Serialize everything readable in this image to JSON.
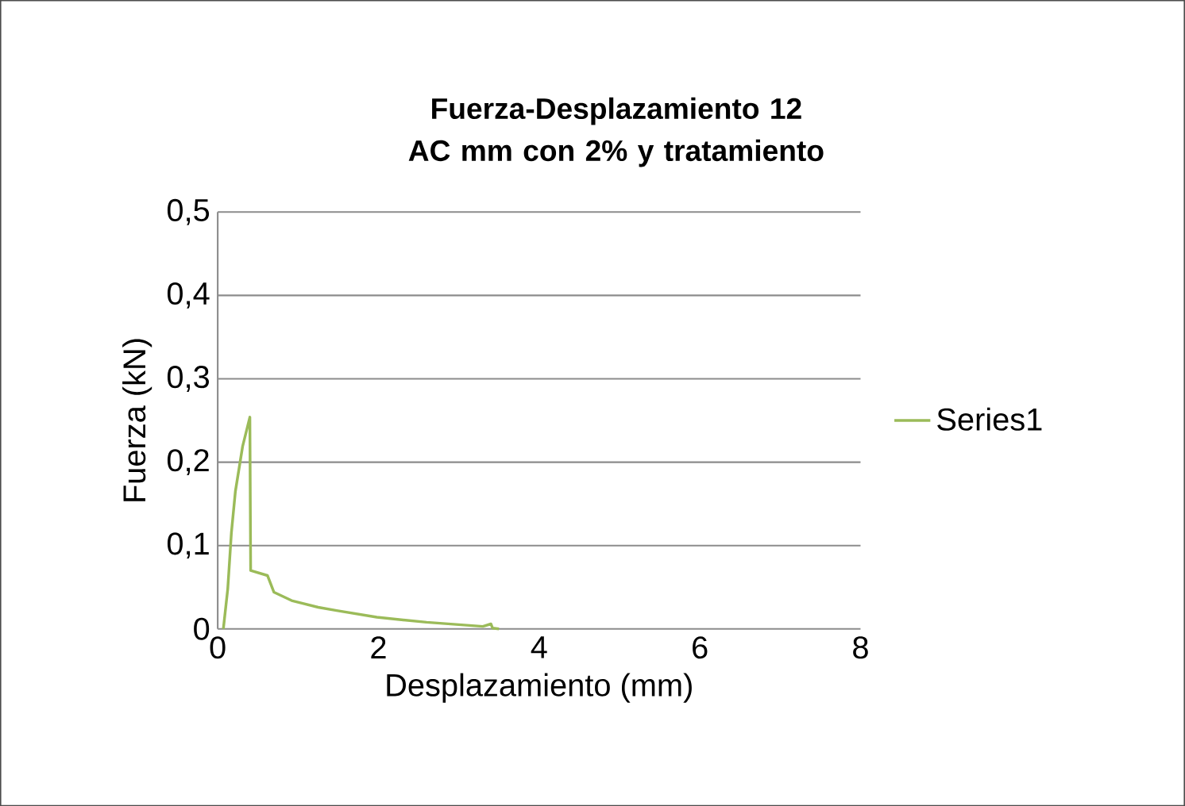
{
  "chart_data": {
    "type": "line",
    "title": "Fuerza-Desplazamiento 12 AC mm con 2% y tratamiento",
    "xlabel": "Desplazamiento (mm)",
    "ylabel": "Fuerza (kN)",
    "series": [
      {
        "name": "Series1",
        "color": "#9bbb59",
        "x": [
          0.07,
          0.125,
          0.17,
          0.22,
          0.31,
          0.4,
          0.41,
          0.62,
          0.7,
          0.92,
          1.25,
          1.48,
          1.98,
          2.6,
          3.3,
          3.4,
          3.42,
          3.5
        ],
        "values": [
          0,
          0.048,
          0.115,
          0.165,
          0.219,
          0.254,
          0.07,
          0.064,
          0.044,
          0.034,
          0.026,
          0.022,
          0.014,
          0.008,
          0.003,
          0.006,
          0.001,
          0
        ]
      }
    ],
    "xlim": [
      0,
      8
    ],
    "xticks": [
      0,
      2,
      4,
      6,
      8
    ],
    "ylim": [
      0,
      0.5
    ],
    "yticks": [
      {
        "value": 0,
        "label": "0"
      },
      {
        "value": 0.1,
        "label": "0,1"
      },
      {
        "value": 0.2,
        "label": "0,2"
      },
      {
        "value": 0.3,
        "label": "0,3"
      },
      {
        "value": 0.4,
        "label": "0,4"
      },
      {
        "value": 0.5,
        "label": "0,5"
      }
    ],
    "grid": "y",
    "legend": "right",
    "marker": "none",
    "line_style": "solid"
  }
}
